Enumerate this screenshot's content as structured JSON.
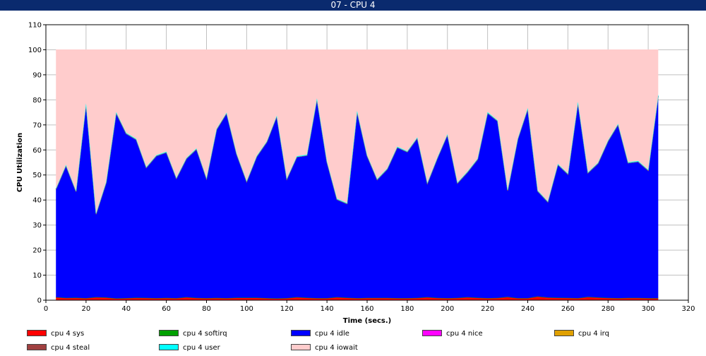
{
  "window": {
    "title": "07  -  CPU 4"
  },
  "chart_data": {
    "type": "area",
    "stacked": true,
    "title": "07  -  CPU 4",
    "xlabel": "Time (secs.)",
    "ylabel": "CPU Utilization",
    "xlim": [
      0,
      320
    ],
    "ylim": [
      0,
      110
    ],
    "xticks": [
      0,
      20,
      40,
      60,
      80,
      100,
      120,
      140,
      160,
      180,
      200,
      220,
      240,
      260,
      280,
      300,
      320
    ],
    "yticks": [
      0,
      10,
      20,
      30,
      40,
      50,
      60,
      70,
      80,
      90,
      100,
      110
    ],
    "grid": true,
    "legend_position": "bottom",
    "x": [
      5,
      10,
      15,
      20,
      25,
      30,
      35,
      40,
      45,
      50,
      55,
      60,
      65,
      70,
      75,
      80,
      85,
      90,
      95,
      100,
      105,
      110,
      115,
      120,
      125,
      130,
      135,
      140,
      145,
      150,
      155,
      160,
      165,
      170,
      175,
      180,
      185,
      190,
      195,
      200,
      205,
      210,
      215,
      220,
      225,
      230,
      235,
      240,
      245,
      250,
      255,
      260,
      265,
      270,
      275,
      280,
      285,
      290,
      295,
      300,
      305
    ],
    "series": [
      {
        "name": "cpu 4 sys",
        "color": "#ff0000",
        "values": [
          1.2,
          0.9,
          1.0,
          0.8,
          1.2,
          1.1,
          0.7,
          0.8,
          1.0,
          0.9,
          0.8,
          0.9,
          0.8,
          1.2,
          0.9,
          0.8,
          0.9,
          0.8,
          1.0,
          1.0,
          1.0,
          0.8,
          0.7,
          0.8,
          1.2,
          1.0,
          0.8,
          0.8,
          1.2,
          1.0,
          0.8,
          0.9,
          0.9,
          0.9,
          0.8,
          0.8,
          0.9,
          1.2,
          0.9,
          0.8,
          0.9,
          1.2,
          1.0,
          0.8,
          0.9,
          1.3,
          0.8,
          0.8,
          1.5,
          1.1,
          1.0,
          0.9,
          0.8,
          1.3,
          1.1,
          0.9,
          0.8,
          0.9,
          0.9,
          0.8,
          0.8
        ]
      },
      {
        "name": "cpu 4 softirq",
        "color": "#00a000",
        "values": [
          0,
          0,
          0,
          0,
          0,
          0,
          0,
          0,
          0,
          0,
          0,
          0,
          0,
          0,
          0,
          0,
          0,
          0,
          0,
          0,
          0,
          0,
          0,
          0,
          0,
          0,
          0,
          0,
          0,
          0,
          0,
          0,
          0,
          0,
          0,
          0,
          0,
          0,
          0,
          0,
          0,
          0,
          0,
          0,
          0,
          0,
          0,
          0,
          0,
          0,
          0,
          0,
          0,
          0,
          0,
          0,
          0,
          0,
          0,
          0,
          0
        ]
      },
      {
        "name": "cpu 4 idle",
        "color": "#0000ff",
        "values": [
          43.1,
          52.8,
          42.4,
          77.4,
          33.2,
          45.8,
          74.0,
          65.7,
          63.1,
          52.0,
          56.8,
          58.1,
          47.8,
          55.3,
          59.4,
          47.7,
          67.2,
          73.8,
          57.3,
          46.3,
          56.3,
          62.3,
          72.7,
          47.5,
          56.0,
          56.8,
          79.4,
          54.3,
          39.0,
          37.5,
          74.4,
          56.7,
          47.2,
          51.4,
          60.2,
          58.4,
          63.8,
          45.4,
          55.8,
          65.2,
          45.8,
          49.9,
          55.2,
          73.9,
          70.6,
          42.5,
          63.4,
          75.5,
          42.0,
          38.1,
          53.1,
          49.4,
          78.0,
          49.5,
          53.5,
          62.6,
          69.3,
          53.9,
          54.4,
          51.0,
          80.7
        ]
      },
      {
        "name": "cpu 4 nice",
        "color": "#ff00ff",
        "values": [
          0,
          0,
          0,
          0,
          0,
          0,
          0,
          0,
          0,
          0,
          0,
          0,
          0,
          0,
          0,
          0,
          0,
          0,
          0,
          0,
          0,
          0,
          0,
          0,
          0,
          0,
          0,
          0,
          0,
          0,
          0,
          0,
          0,
          0,
          0,
          0,
          0,
          0,
          0,
          0,
          0,
          0,
          0,
          0,
          0,
          0,
          0,
          0,
          0,
          0,
          0,
          0,
          0,
          0,
          0,
          0,
          0,
          0,
          0,
          0,
          0
        ]
      },
      {
        "name": "cpu 4 irq",
        "color": "#e0a000",
        "values": [
          0,
          0,
          0,
          0,
          0,
          0,
          0,
          0,
          0,
          0,
          0,
          0,
          0,
          0,
          0,
          0,
          0,
          0,
          0,
          0,
          0,
          0,
          0,
          0,
          0,
          0,
          0,
          0,
          0,
          0,
          0,
          0,
          0,
          0,
          0,
          0,
          0,
          0,
          0,
          0,
          0,
          0,
          0,
          0,
          0,
          0,
          0,
          0,
          0,
          0,
          0,
          0,
          0,
          0,
          0,
          0,
          0,
          0,
          0,
          0,
          0
        ]
      },
      {
        "name": "cpu 4 steal",
        "color": "#a04040",
        "values": [
          0,
          0,
          0,
          0,
          0,
          0,
          0,
          0,
          0,
          0,
          0,
          0,
          0,
          0,
          0,
          0,
          0,
          0,
          0,
          0,
          0,
          0,
          0,
          0,
          0,
          0,
          0,
          0,
          0,
          0,
          0,
          0,
          0,
          0,
          0,
          0,
          0,
          0,
          0,
          0,
          0,
          0,
          0,
          0,
          0,
          0,
          0,
          0,
          0,
          0,
          0,
          0,
          0,
          0,
          0,
          0,
          0,
          0,
          0,
          0,
          0
        ]
      },
      {
        "name": "cpu 4 user",
        "color": "#00ffff",
        "values": [
          0.3,
          0.3,
          0.3,
          0.4,
          0.3,
          0.3,
          0.4,
          0.3,
          0.3,
          0.3,
          0.3,
          0.3,
          0.3,
          0.3,
          0.3,
          0.3,
          0.3,
          0.3,
          0.3,
          0.3,
          0.3,
          0.3,
          0.3,
          0.3,
          0.3,
          0.3,
          0.4,
          0.3,
          0.3,
          0.3,
          0.4,
          0.3,
          0.3,
          0.3,
          0.3,
          0.3,
          0.3,
          0.3,
          0.3,
          0.3,
          0.3,
          0.3,
          0.3,
          0.4,
          0.3,
          0.3,
          0.3,
          0.4,
          0.3,
          0.3,
          0.3,
          0.3,
          0.4,
          0.3,
          0.3,
          0.3,
          0.3,
          0.3,
          0.3,
          0.3,
          0.4
        ]
      },
      {
        "name": "cpu 4 iowait",
        "color": "#ffcccc",
        "values": [
          55.4,
          46.0,
          56.3,
          21.4,
          65.3,
          52.8,
          24.9,
          33.2,
          35.6,
          46.8,
          42.1,
          40.7,
          51.1,
          43.2,
          39.4,
          51.2,
          31.6,
          25.1,
          41.4,
          52.4,
          42.4,
          36.6,
          26.3,
          51.4,
          42.5,
          41.9,
          19.4,
          44.6,
          59.5,
          61.2,
          24.4,
          42.1,
          51.6,
          47.4,
          38.7,
          40.5,
          35.0,
          53.1,
          43.0,
          33.7,
          53.0,
          48.6,
          43.5,
          24.9,
          28.2,
          55.9,
          35.5,
          23.3,
          56.2,
          60.5,
          45.6,
          49.4,
          20.8,
          48.9,
          45.1,
          36.2,
          29.6,
          44.9,
          44.4,
          47.9,
          18.1
        ]
      }
    ]
  }
}
